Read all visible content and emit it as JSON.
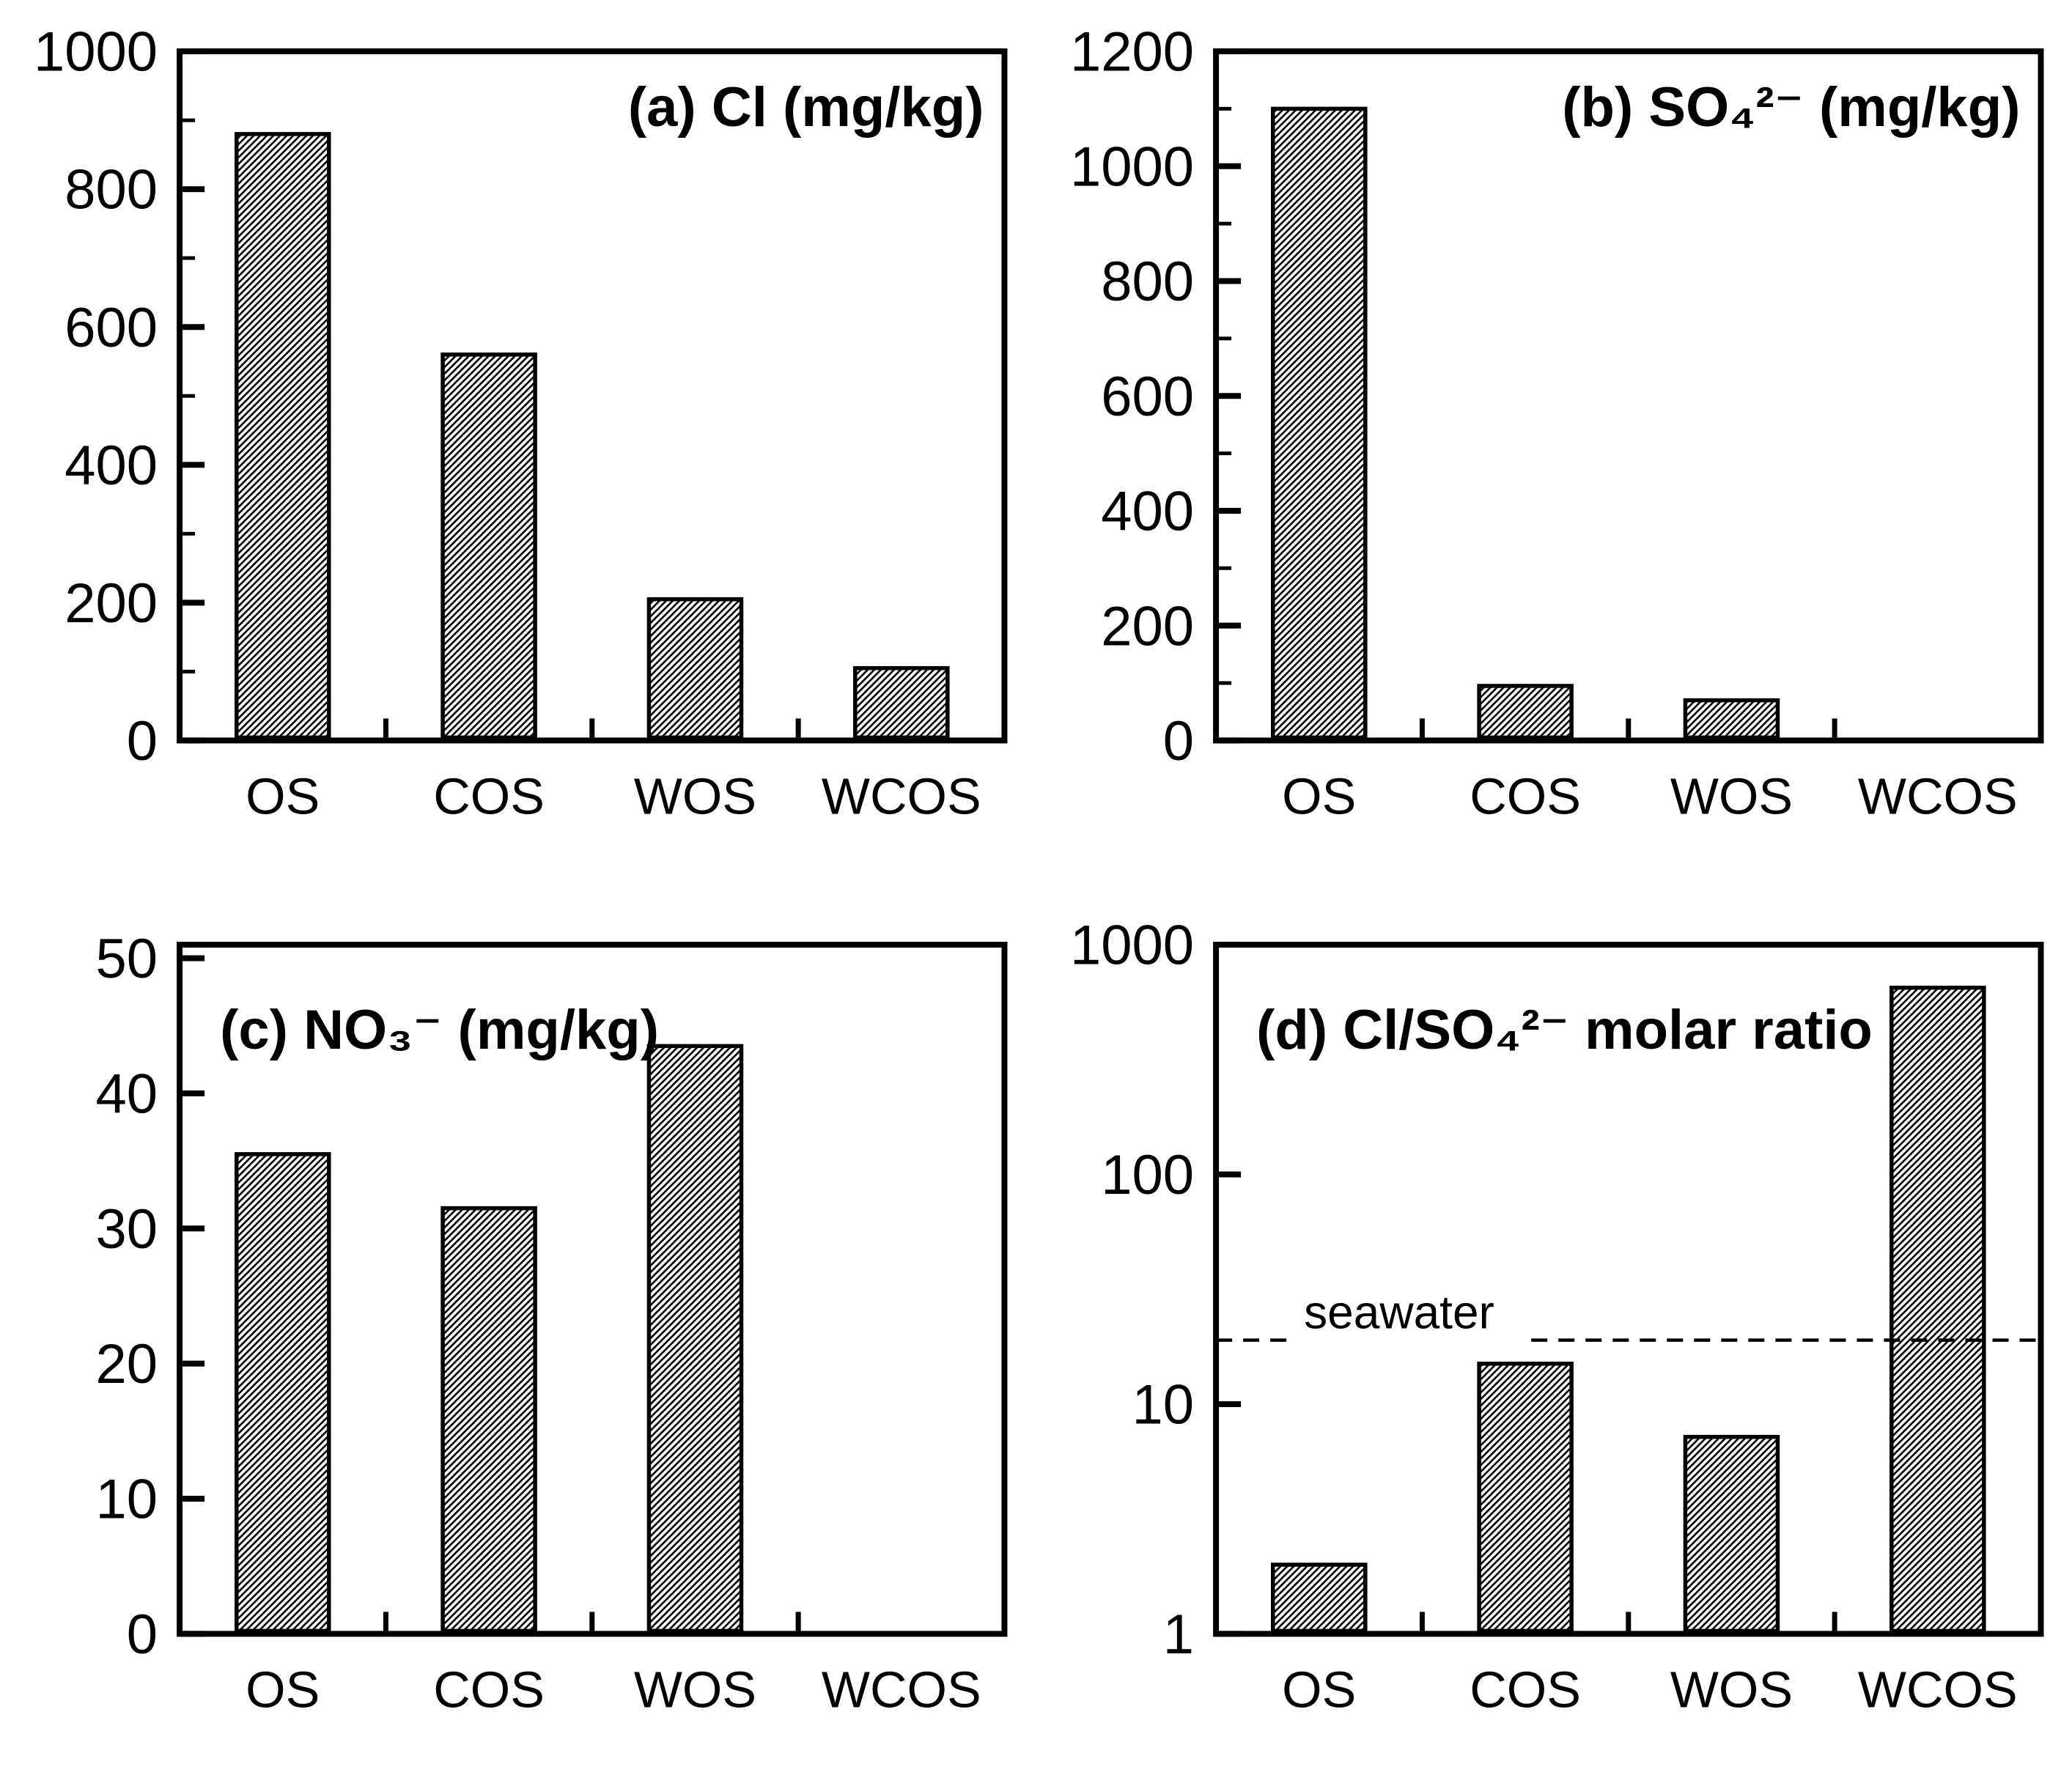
{
  "figure": {
    "background": "#ffffff",
    "ink_color": "#000000",
    "bar_style": "diagonal-hatch",
    "categories": [
      "OS",
      "COS",
      "WOS",
      "WCOS"
    ]
  },
  "chart_data": [
    {
      "panel": "a",
      "type": "bar",
      "title": "(a) Cl (mg/kg)",
      "title_side": "right",
      "yscale": "linear",
      "ylim": [
        0,
        1000
      ],
      "yticks": [
        0,
        200,
        400,
        600,
        800,
        1000
      ],
      "minor_step": 100,
      "grid": false,
      "categories": [
        "OS",
        "COS",
        "WOS",
        "WCOS"
      ],
      "values": [
        880,
        560,
        205,
        105
      ]
    },
    {
      "panel": "b",
      "type": "bar",
      "title": "(b) SO₄²⁻ (mg/kg)",
      "title_side": "right",
      "yscale": "linear",
      "ylim": [
        0,
        1200
      ],
      "yticks": [
        0,
        200,
        400,
        600,
        800,
        1000,
        1200
      ],
      "minor_step": 100,
      "grid": false,
      "categories": [
        "OS",
        "COS",
        "WOS",
        "WCOS"
      ],
      "values": [
        1100,
        95,
        70,
        0
      ]
    },
    {
      "panel": "c",
      "type": "bar",
      "title": "(c) NO₃⁻ (mg/kg)",
      "title_side": "left",
      "yscale": "linear",
      "ylim": [
        0,
        51
      ],
      "yticks": [
        0,
        10,
        20,
        30,
        40,
        50
      ],
      "minor_step": null,
      "grid": false,
      "categories": [
        "OS",
        "COS",
        "WOS",
        "WCOS"
      ],
      "values": [
        35.5,
        31.5,
        43.5,
        0
      ]
    },
    {
      "panel": "d",
      "type": "bar",
      "title": "(d) Cl/SO₄²⁻ molar ratio",
      "title_side": "left",
      "yscale": "log",
      "ylim": [
        1,
        1000
      ],
      "yticks": [
        1,
        10,
        100,
        1000
      ],
      "minor_step": null,
      "grid": false,
      "categories": [
        "OS",
        "COS",
        "WOS",
        "WCOS"
      ],
      "values": [
        2,
        15,
        7.2,
        650
      ],
      "annotation": {
        "label": "seawater",
        "value": 19,
        "line_style": "dashed"
      }
    }
  ]
}
